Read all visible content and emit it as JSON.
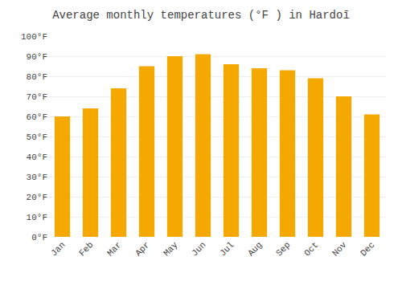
{
  "chart_data": {
    "type": "bar",
    "title": "Average monthly temperatures (°F ) in Hardoī",
    "categories": [
      "Jan",
      "Feb",
      "Mar",
      "Apr",
      "May",
      "Jun",
      "Jul",
      "Aug",
      "Sep",
      "Oct",
      "Nov",
      "Dec"
    ],
    "values": [
      60,
      64,
      74,
      85,
      90,
      91,
      86,
      84,
      83,
      79,
      70,
      61
    ],
    "color": "#F5A800",
    "ylim": [
      0,
      100
    ],
    "yticks": [
      {
        "value": 0,
        "label": "0°F"
      },
      {
        "value": 10,
        "label": "10°F"
      },
      {
        "value": 20,
        "label": "20°F"
      },
      {
        "value": 30,
        "label": "30°F"
      },
      {
        "value": 40,
        "label": "40°F"
      },
      {
        "value": 50,
        "label": "50°F"
      },
      {
        "value": 60,
        "label": "60°F"
      },
      {
        "value": 70,
        "label": "70°F"
      },
      {
        "value": 80,
        "label": "80°F"
      },
      {
        "value": 90,
        "label": "90°F"
      },
      {
        "value": 100,
        "label": "100°F"
      }
    ],
    "grid": true
  }
}
